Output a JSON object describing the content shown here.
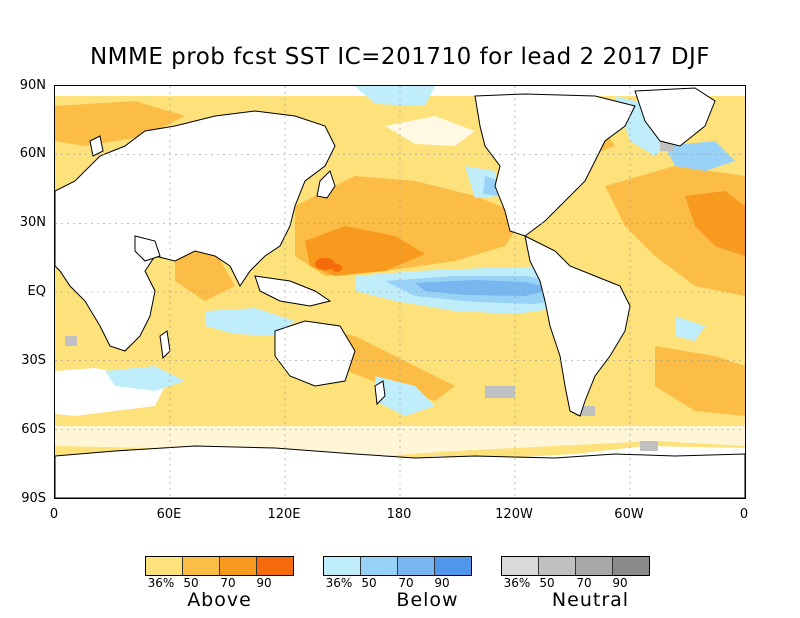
{
  "title": "NMME prob fcst SST IC=201710 for lead 2 2017 DJF",
  "lat_labels": [
    "90N",
    "60N",
    "30N",
    "EQ",
    "30S",
    "60S",
    "90S"
  ],
  "lon_labels": [
    "0",
    "60E",
    "120E",
    "180",
    "120W",
    "60W",
    "0"
  ],
  "legend": [
    {
      "name": "Above",
      "ticks": [
        "36%",
        "50",
        "70",
        "90"
      ],
      "colors": [
        "#fde17a",
        "#fbbd45",
        "#f89a1e",
        "#f56a0a"
      ]
    },
    {
      "name": "Below",
      "ticks": [
        "36%",
        "50",
        "70",
        "90"
      ],
      "colors": [
        "#bfeefa",
        "#98d2f6",
        "#78b6f0",
        "#4f97ea"
      ]
    },
    {
      "name": "Neutral",
      "ticks": [
        "36%",
        "50",
        "70",
        "90"
      ],
      "colors": [
        "#d9d9d9",
        "#c0c0c0",
        "#a8a8a8",
        "#8a8a8a"
      ]
    }
  ]
}
